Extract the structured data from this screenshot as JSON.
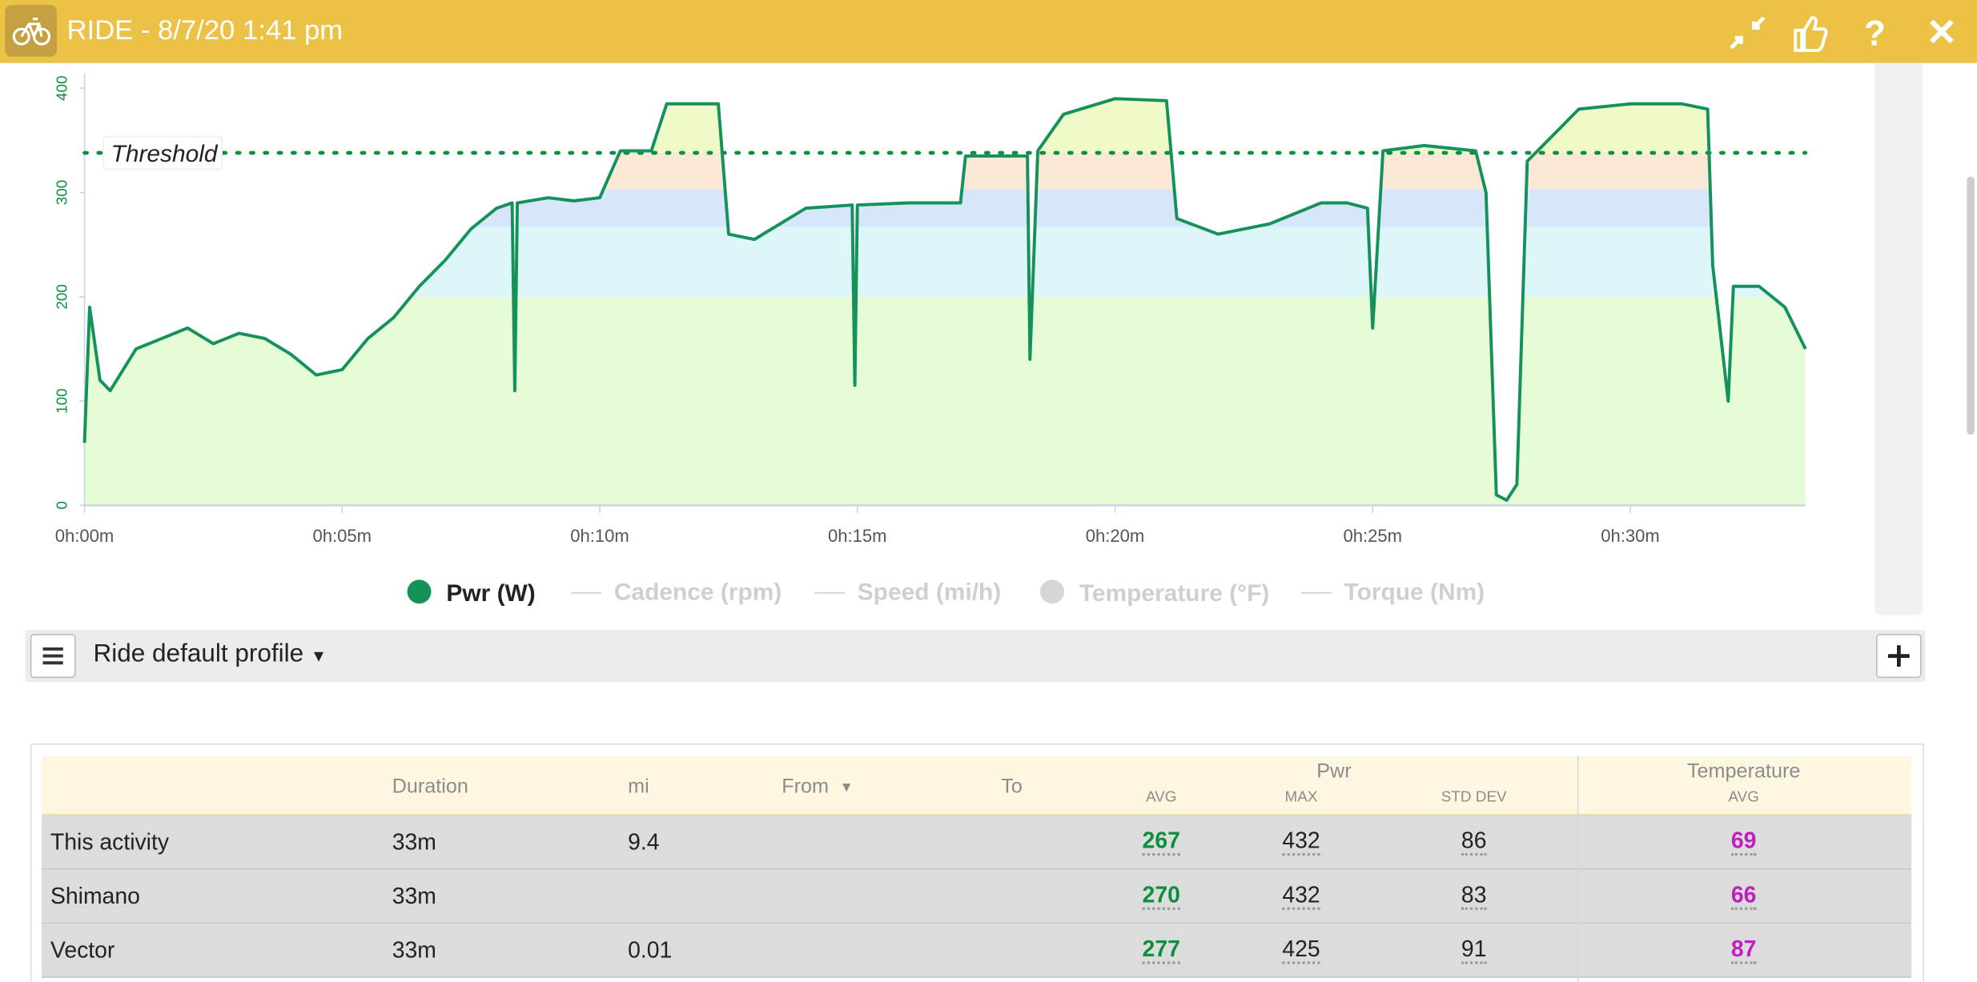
{
  "header": {
    "title": "RIDE - 8/7/20 1:41 pm"
  },
  "chart": {
    "type": "line",
    "x": [
      0,
      0.1,
      0.3,
      0.5,
      1,
      1.5,
      2,
      2.5,
      3,
      3.5,
      4,
      4.5,
      5,
      5.5,
      6,
      6.5,
      7,
      7.5,
      8,
      8.3,
      8.35,
      8.4,
      9,
      9.5,
      10,
      10.4,
      11,
      11.3,
      12,
      12.3,
      12.5,
      13,
      13.5,
      14,
      14.9,
      14.95,
      15,
      16,
      17,
      17.1,
      18,
      18.3,
      18.35,
      18.5,
      19,
      20,
      21,
      21.2,
      22,
      23,
      24,
      24.5,
      24.9,
      25,
      25.2,
      26,
      27,
      27.2,
      27.4,
      27.6,
      27.8,
      28,
      28.2,
      29,
      30,
      31,
      31.5,
      31.6,
      31.9,
      32,
      32.5,
      33,
      33.4
    ],
    "series": [
      {
        "name": "Pwr (W)",
        "color": "#15915a",
        "values": [
          60,
          190,
          120,
          110,
          150,
          160,
          170,
          155,
          165,
          160,
          145,
          125,
          130,
          160,
          180,
          210,
          235,
          265,
          285,
          290,
          110,
          290,
          295,
          292,
          295,
          340,
          340,
          385,
          385,
          385,
          260,
          255,
          270,
          285,
          288,
          115,
          288,
          290,
          290,
          335,
          335,
          335,
          140,
          340,
          375,
          390,
          388,
          275,
          260,
          270,
          290,
          290,
          285,
          170,
          340,
          345,
          340,
          300,
          10,
          5,
          20,
          330,
          340,
          380,
          385,
          385,
          380,
          230,
          100,
          210,
          210,
          190,
          150
        ]
      }
    ],
    "xlim": [
      0,
      33.4
    ],
    "xticks": [
      {
        "value": 0,
        "label": "0h:00m"
      },
      {
        "value": 5,
        "label": "0h:05m"
      },
      {
        "value": 10,
        "label": "0h:10m"
      },
      {
        "value": 15,
        "label": "0h:15m"
      },
      {
        "value": 20,
        "label": "0h:20m"
      },
      {
        "value": 25,
        "label": "0h:25m"
      },
      {
        "value": 30,
        "label": "0h:30m"
      }
    ],
    "ylim": [
      0,
      400
    ],
    "yticks": [
      0,
      100,
      200,
      300,
      400
    ],
    "axis_color": "#0a8f3c",
    "threshold": {
      "label": "Threshold",
      "value": 338
    },
    "zones": {
      "bounds": [
        0,
        200,
        267,
        303,
        338
      ],
      "colors": [
        "#e6fcd6",
        "#ddf6f7",
        "#d8e6fb",
        "#fbe8d6",
        "#eefbc8"
      ]
    },
    "inactive_series": [
      "Cadence (rpm)",
      "Speed (mi/h)",
      "Temperature (°F)",
      "Torque (Nm)"
    ]
  },
  "profile": {
    "label": "Ride default profile"
  },
  "table": {
    "group_headers": [
      "Pwr",
      "Temperature"
    ],
    "columns": [
      "Duration",
      "mi",
      "From",
      "To",
      "AVG",
      "MAX",
      "STD DEV",
      "AVG"
    ],
    "rows": [
      [
        "This activity",
        "33m",
        9.4,
        null,
        null,
        267,
        432,
        86,
        69
      ],
      [
        "Shimano",
        "33m",
        null,
        null,
        null,
        270,
        432,
        83,
        66
      ],
      [
        "Vector",
        "33m",
        0.01,
        null,
        null,
        277,
        425,
        91,
        87
      ]
    ]
  }
}
